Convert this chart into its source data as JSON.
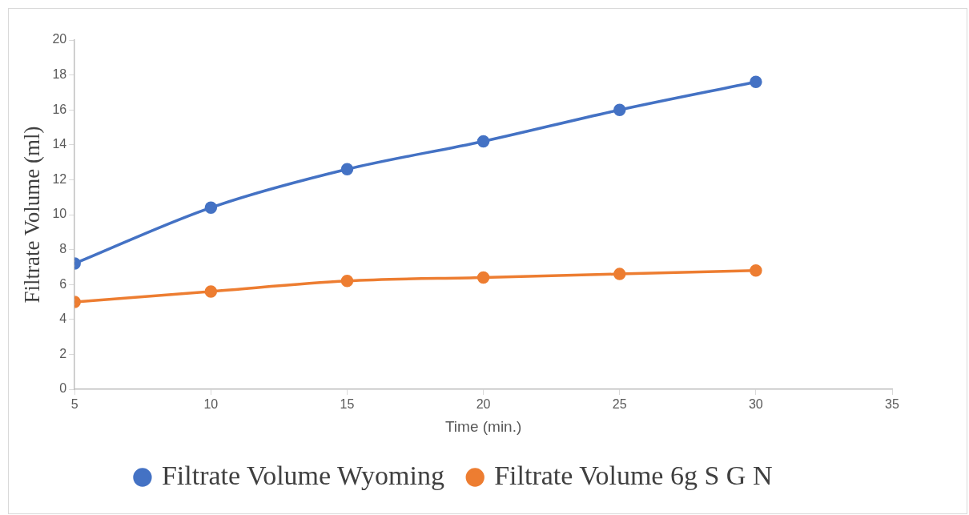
{
  "chart_data": {
    "type": "line",
    "xlabel": "Time (min.)",
    "ylabel": "Filtrate Volume (ml)",
    "x": [
      5,
      10,
      15,
      20,
      25,
      30
    ],
    "series": [
      {
        "name": "Filtrate Volume Wyoming",
        "color": "#4472c4",
        "values": [
          7.2,
          10.4,
          12.6,
          14.2,
          16.0,
          17.6
        ]
      },
      {
        "name": "Filtrate Volume 6g S G N",
        "color": "#ed7d31",
        "values": [
          5.0,
          5.6,
          6.2,
          6.4,
          6.6,
          6.8
        ]
      }
    ],
    "xlim": [
      5,
      35
    ],
    "xticks": [
      5,
      10,
      15,
      20,
      25,
      30,
      35
    ],
    "ylim": [
      0,
      20
    ],
    "yticks": [
      0,
      2,
      4,
      6,
      8,
      10,
      12,
      14,
      16,
      18,
      20
    ],
    "grid": false,
    "legend": "bottom",
    "marker": "circle",
    "line_style": "solid"
  }
}
